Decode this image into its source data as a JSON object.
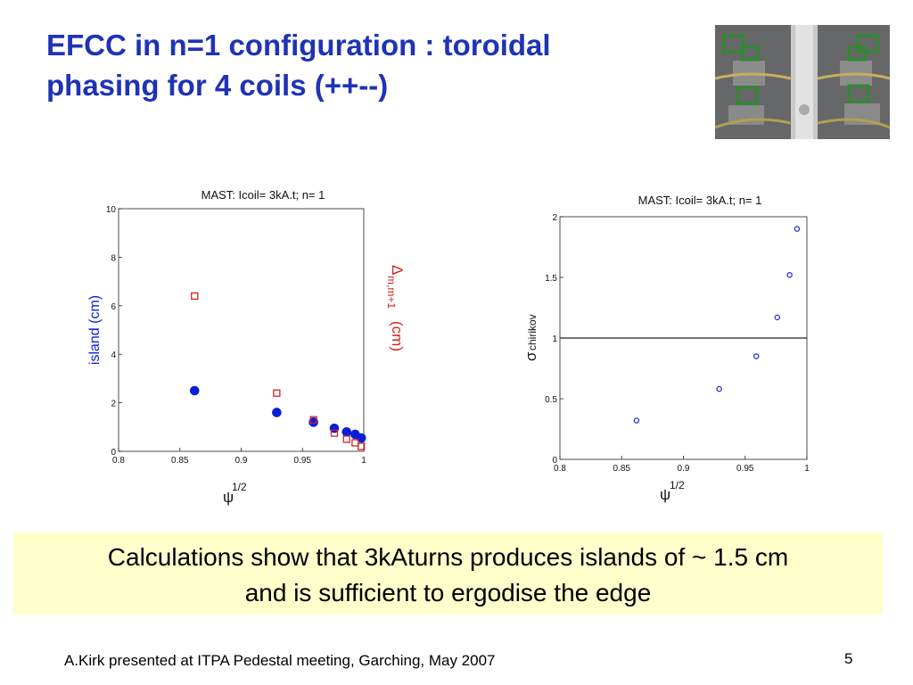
{
  "slide": {
    "title_line1": "EFCC in n=1 configuration : toroidal",
    "title_line2": "phasing for 4 coils (++--)",
    "callout_line1": "Calculations show that 3kAturns produces islands of ~ 1.5 cm",
    "callout_line2": "and is sufficient to ergodise the edge",
    "footer": "A.Kirk presented at ITPA Pedestal meeting, Garching, May 2007",
    "page_number": "5",
    "image_alt_icon": "tokamak-interior-photo"
  },
  "colors": {
    "title": "#1f33b5",
    "callout_bg": "#ffffcc",
    "island_series": "#0a1ed8",
    "delta_series": "#d42020",
    "sigma_series": "#2a32c8"
  },
  "chart_data": [
    {
      "type": "scatter",
      "title": "MAST: Icoil= 3kA.t; n= 1",
      "xlabel": "ψ",
      "xlabel_sup": "1/2",
      "ylabel": "island  (cm)",
      "ylabel_right": "Δ",
      "ylabel_right_sub": "m,m+1",
      "ylabel_right_unit": "(cm)",
      "xlim": [
        0.8,
        1
      ],
      "ylim": [
        0,
        10
      ],
      "xticks": [
        "0.8",
        "0.85",
        "0.9",
        "0.95",
        "1"
      ],
      "yticks": [
        "0",
        "2",
        "4",
        "6",
        "8",
        "10"
      ],
      "series": [
        {
          "marker": "filled-circle",
          "x": [
            0.862,
            0.929,
            0.959,
            0.976,
            0.986,
            0.993,
            0.998
          ],
          "y": [
            2.5,
            1.6,
            1.2,
            0.95,
            0.8,
            0.7,
            0.55
          ]
        },
        {
          "marker": "open-square",
          "x": [
            0.862,
            0.929,
            0.959,
            0.976,
            0.986,
            0.993,
            0.998
          ],
          "y": [
            6.4,
            2.4,
            1.3,
            0.75,
            0.5,
            0.35,
            0.2
          ]
        }
      ]
    },
    {
      "type": "scatter",
      "title": "MAST: Icoil= 3kA.t;  n= 1",
      "xlabel": "ψ",
      "xlabel_sup": "1/2",
      "ylabel": "σ",
      "ylabel_sub": "chirikov",
      "xlim": [
        0.8,
        1
      ],
      "ylim": [
        0,
        2
      ],
      "xticks": [
        "0.8",
        "0.85",
        "0.9",
        "0.95",
        "1"
      ],
      "yticks": [
        "0",
        "0.5",
        "1",
        "1.5",
        "2"
      ],
      "hline": 1,
      "series": [
        {
          "marker": "open-circle",
          "x": [
            0.862,
            0.929,
            0.959,
            0.976,
            0.986,
            0.992
          ],
          "y": [
            0.32,
            0.58,
            0.85,
            1.17,
            1.52,
            1.9
          ]
        }
      ]
    }
  ]
}
